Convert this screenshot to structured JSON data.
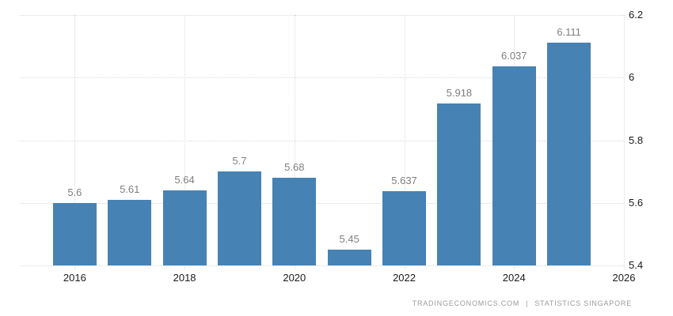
{
  "chart_data": {
    "type": "bar",
    "title": "",
    "xlabel": "",
    "ylabel": "",
    "x": [
      2016,
      2017,
      2018,
      2019,
      2020,
      2021,
      2022,
      2023,
      2024,
      2025
    ],
    "values": [
      5.6,
      5.61,
      5.64,
      5.7,
      5.68,
      5.45,
      5.637,
      5.918,
      6.037,
      6.111
    ],
    "bar_labels": [
      "5.6",
      "5.61",
      "5.64",
      "5.7",
      "5.68",
      "5.45",
      "5.637",
      "5.918",
      "6.037",
      "6.111"
    ],
    "xlim": [
      2015,
      2026
    ],
    "ylim": [
      5.4,
      6.2
    ],
    "xtick_values": [
      2016,
      2018,
      2020,
      2022,
      2024,
      2026
    ],
    "xtick_labels": [
      "2016",
      "2018",
      "2020",
      "2022",
      "2024",
      "2026"
    ],
    "ytick_values": [
      5.4,
      5.6,
      5.8,
      6,
      6.2
    ],
    "ytick_labels": [
      "5.4",
      "5.6",
      "5.8",
      "6",
      "6.2"
    ],
    "grid": "dotted",
    "legend": "none",
    "yaxis_side": "right",
    "colors": {
      "bar": "#4682b4",
      "grid": "#d9d9d9",
      "bar_label": "#7f7f7f",
      "axis_label": "#1a1a1a"
    }
  },
  "attribution": {
    "left": "TRADINGECONOMICS.COM",
    "separator": "|",
    "right": "STATISTICS SINGAPORE"
  }
}
